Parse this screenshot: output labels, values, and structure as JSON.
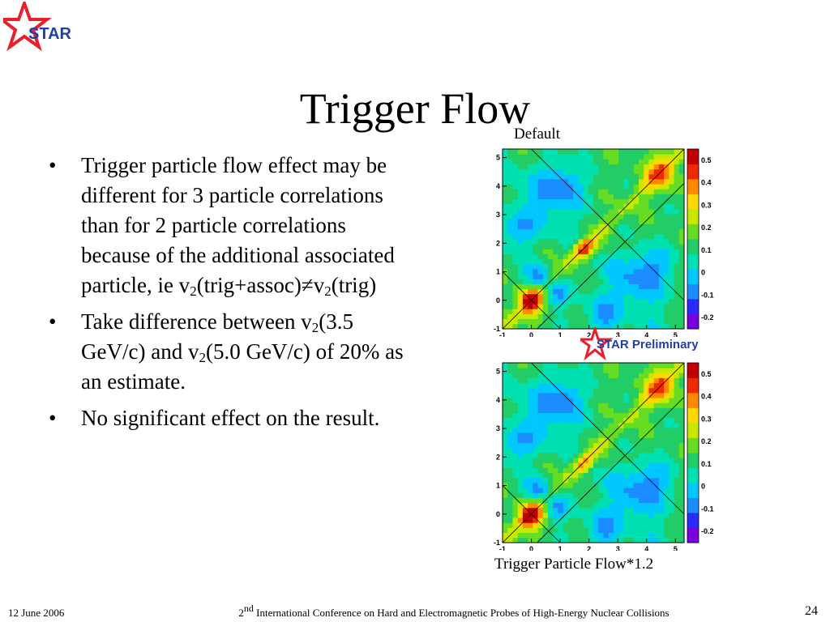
{
  "slide": {
    "title": "Trigger Flow",
    "bullets": [
      {
        "parts": [
          {
            "t": "Trigger particle flow effect may be different for 3 particle correlations than for 2 particle correlations because of the additional associated particle, ie v"
          },
          {
            "sub": "2"
          },
          {
            "t": "(trig+assoc)≠v"
          },
          {
            "sub": "2"
          },
          {
            "t": "(trig)"
          }
        ]
      },
      {
        "parts": [
          {
            "t": "Take difference between v"
          },
          {
            "sub": "2"
          },
          {
            "t": "(3.5 GeV/c) and v"
          },
          {
            "sub": "2"
          },
          {
            "t": "(5.0 GeV/c) of 20% as an estimate."
          }
        ]
      },
      {
        "parts": [
          {
            "t": "No significant effect on the result."
          }
        ]
      }
    ]
  },
  "figure": {
    "top_label": "Default",
    "bottom_label": "Trigger Particle Flow*1.2",
    "preliminary_label": "STAR Preliminary",
    "logo_text": "STAR"
  },
  "chart_data": [
    {
      "type": "heatmap",
      "title": "Default",
      "x_ticks": [
        "-1",
        "0",
        "1",
        "2",
        "3",
        "4",
        "5"
      ],
      "y_ticks": [
        "-1",
        "0",
        "1",
        "2",
        "3",
        "4",
        "5"
      ],
      "xlim": [
        -1,
        5.3
      ],
      "ylim": [
        -1,
        5.3
      ],
      "colorbar_ticks": [
        "0.5",
        "0.4",
        "0.3",
        "0.2",
        "0.1",
        "0",
        "-0.1",
        "-0.2"
      ],
      "colorbar_range": [
        -0.25,
        0.55
      ]
    },
    {
      "type": "heatmap",
      "title": "Trigger Particle Flow*1.2",
      "x_ticks": [
        "-1",
        "0",
        "1",
        "2",
        "3",
        "4",
        "5"
      ],
      "y_ticks": [
        "-1",
        "0",
        "1",
        "2",
        "3",
        "4",
        "5"
      ],
      "xlim": [
        -1,
        5.3
      ],
      "ylim": [
        -1,
        5.3
      ],
      "colorbar_ticks": [
        "0.5",
        "0.4",
        "0.3",
        "0.2",
        "0.1",
        "0",
        "-0.1",
        "-0.2"
      ],
      "colorbar_range": [
        -0.25,
        0.55
      ]
    }
  ],
  "footer": {
    "date": "12 June 2006",
    "conference_sup": "nd",
    "conference_num": "2",
    "conference_rest": " International Conference on Hard and Electromagnetic Probes of High-Energy Nuclear Collisions",
    "page": "24"
  },
  "colors": {
    "logo_red": "#e8202a",
    "logo_blue": "#1f3fa8",
    "map_background": "#22cc66"
  }
}
